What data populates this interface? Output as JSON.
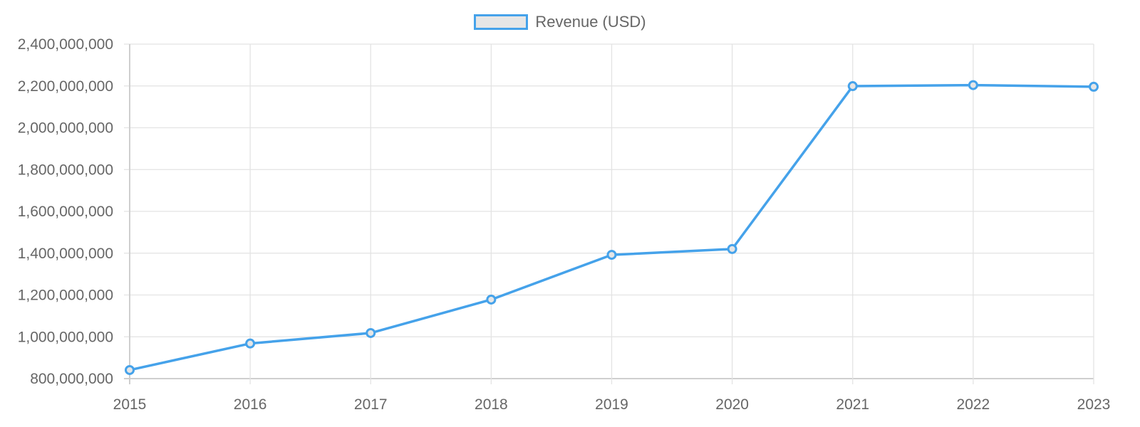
{
  "legend": {
    "label": "Revenue (USD)",
    "swatch_border": "#45a2ea",
    "swatch_fill": "#e6e6e6"
  },
  "chart_data": {
    "type": "line",
    "title": "",
    "xlabel": "",
    "ylabel": "",
    "legend_position": "top",
    "grid": true,
    "x": [
      "2015",
      "2016",
      "2017",
      "2018",
      "2019",
      "2020",
      "2021",
      "2022",
      "2023"
    ],
    "series": [
      {
        "name": "Revenue (USD)",
        "color": "#45a2ea",
        "values": [
          841000000,
          968000000,
          1018000000,
          1178000000,
          1392000000,
          1420000000,
          2199000000,
          2204000000,
          2196000000
        ]
      }
    ],
    "ylim": [
      800000000,
      2400000000
    ],
    "yticks": [
      "800,000,000",
      "1,000,000,000",
      "1,200,000,000",
      "1,400,000,000",
      "1,600,000,000",
      "1,800,000,000",
      "2,000,000,000",
      "2,200,000,000",
      "2,400,000,000"
    ]
  }
}
